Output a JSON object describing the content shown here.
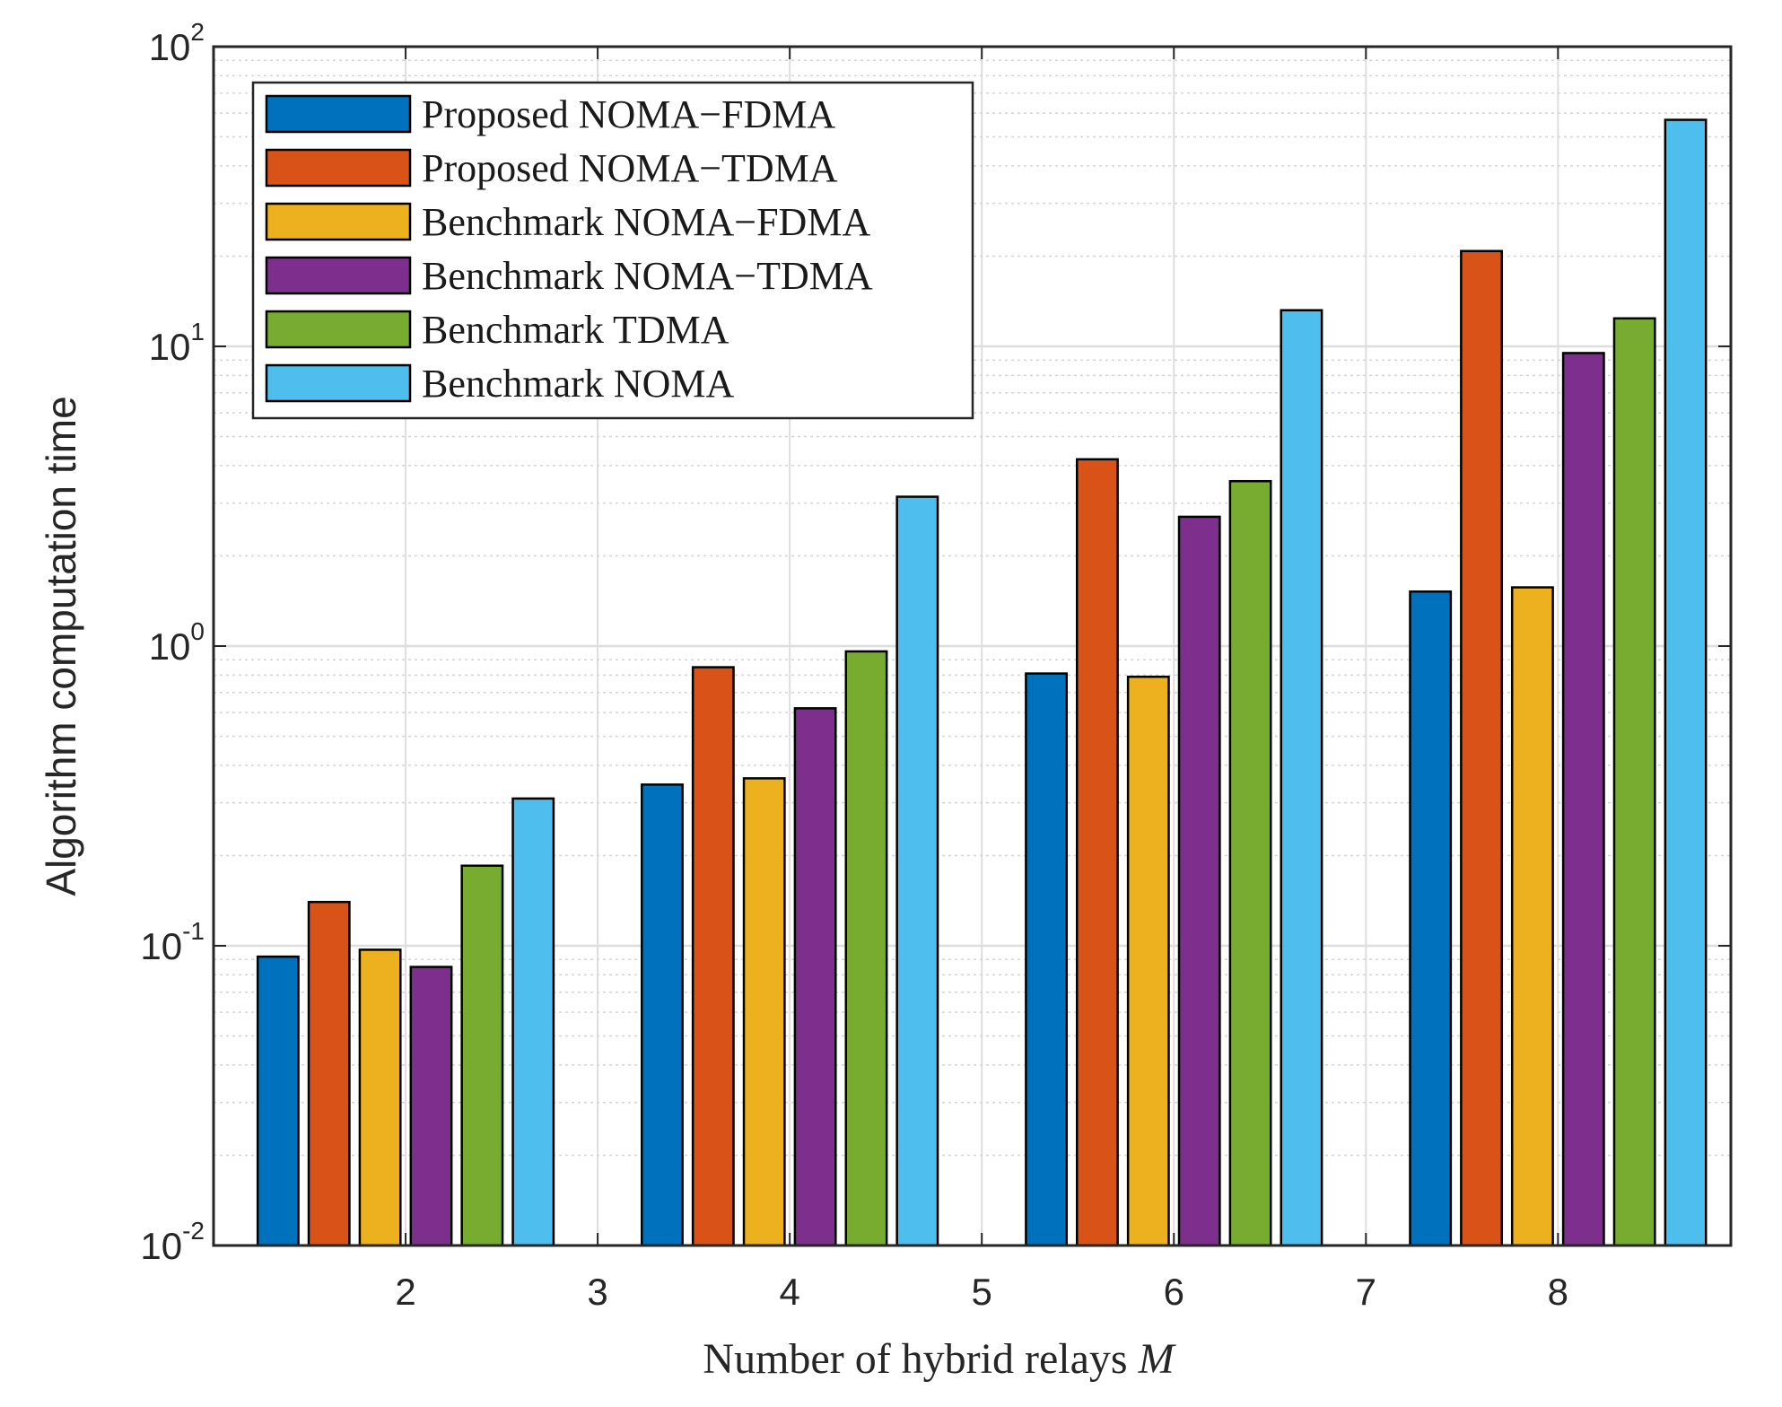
{
  "chart_data": {
    "type": "bar",
    "title": "",
    "xlabel": "Number of hybrid relays",
    "xlabel_var": "M",
    "ylabel": "Algorithm computation time",
    "yscale": "log",
    "ylim": [
      0.01,
      100
    ],
    "xlim": [
      1,
      8.9
    ],
    "x_ticks": [
      2,
      3,
      4,
      5,
      6,
      7,
      8
    ],
    "y_ticks": [
      {
        "base": "10",
        "exp": "-2"
      },
      {
        "base": "10",
        "exp": "-1"
      },
      {
        "base": "10",
        "exp": "0"
      },
      {
        "base": "10",
        "exp": "1"
      },
      {
        "base": "10",
        "exp": "2"
      }
    ],
    "grid": true,
    "legend_position": "top-left",
    "categories": [
      2,
      4,
      6,
      8
    ],
    "series": [
      {
        "name": "Proposed NOMA−FDMA",
        "color": "#0072BD",
        "values": [
          0.092,
          0.345,
          0.81,
          1.52
        ]
      },
      {
        "name": "Proposed NOMA−TDMA",
        "color": "#D95319",
        "values": [
          0.14,
          0.85,
          4.2,
          20.8
        ]
      },
      {
        "name": "Benchmark NOMA−FDMA",
        "color": "#EDB120",
        "values": [
          0.097,
          0.362,
          0.79,
          1.57
        ]
      },
      {
        "name": "Benchmark NOMA−TDMA",
        "color": "#7E2F8E",
        "values": [
          0.085,
          0.62,
          2.7,
          9.5
        ]
      },
      {
        "name": "Benchmark TDMA",
        "color": "#77AC30",
        "values": [
          0.185,
          0.96,
          3.55,
          12.4
        ]
      },
      {
        "name": "Benchmark NOMA",
        "color": "#4DBEEE",
        "values": [
          0.31,
          3.15,
          13.2,
          57
        ]
      }
    ]
  }
}
